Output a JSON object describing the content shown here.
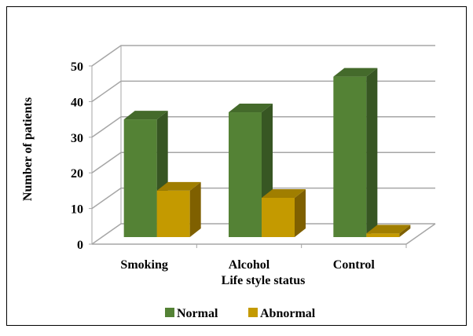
{
  "chart_data": {
    "type": "bar",
    "title": "",
    "xlabel": "Life style status",
    "ylabel": "Number of patients",
    "categories": [
      "Smoking",
      "Alcohol",
      "Control"
    ],
    "series": [
      {
        "name": "Normal",
        "values": [
          35,
          37,
          47
        ],
        "color": "#548235",
        "side_color": "#375623",
        "top_color": "#446a2b"
      },
      {
        "name": "Abnormal",
        "values": [
          15,
          13,
          3
        ],
        "color": "#c49a00",
        "side_color": "#7f6000",
        "top_color": "#a07e00"
      }
    ],
    "ylim": [
      0,
      50
    ],
    "yticks": [
      0,
      10,
      20,
      30,
      40,
      50
    ],
    "grid": true,
    "legend_position": "bottom",
    "style": "3d-clustered-column"
  }
}
